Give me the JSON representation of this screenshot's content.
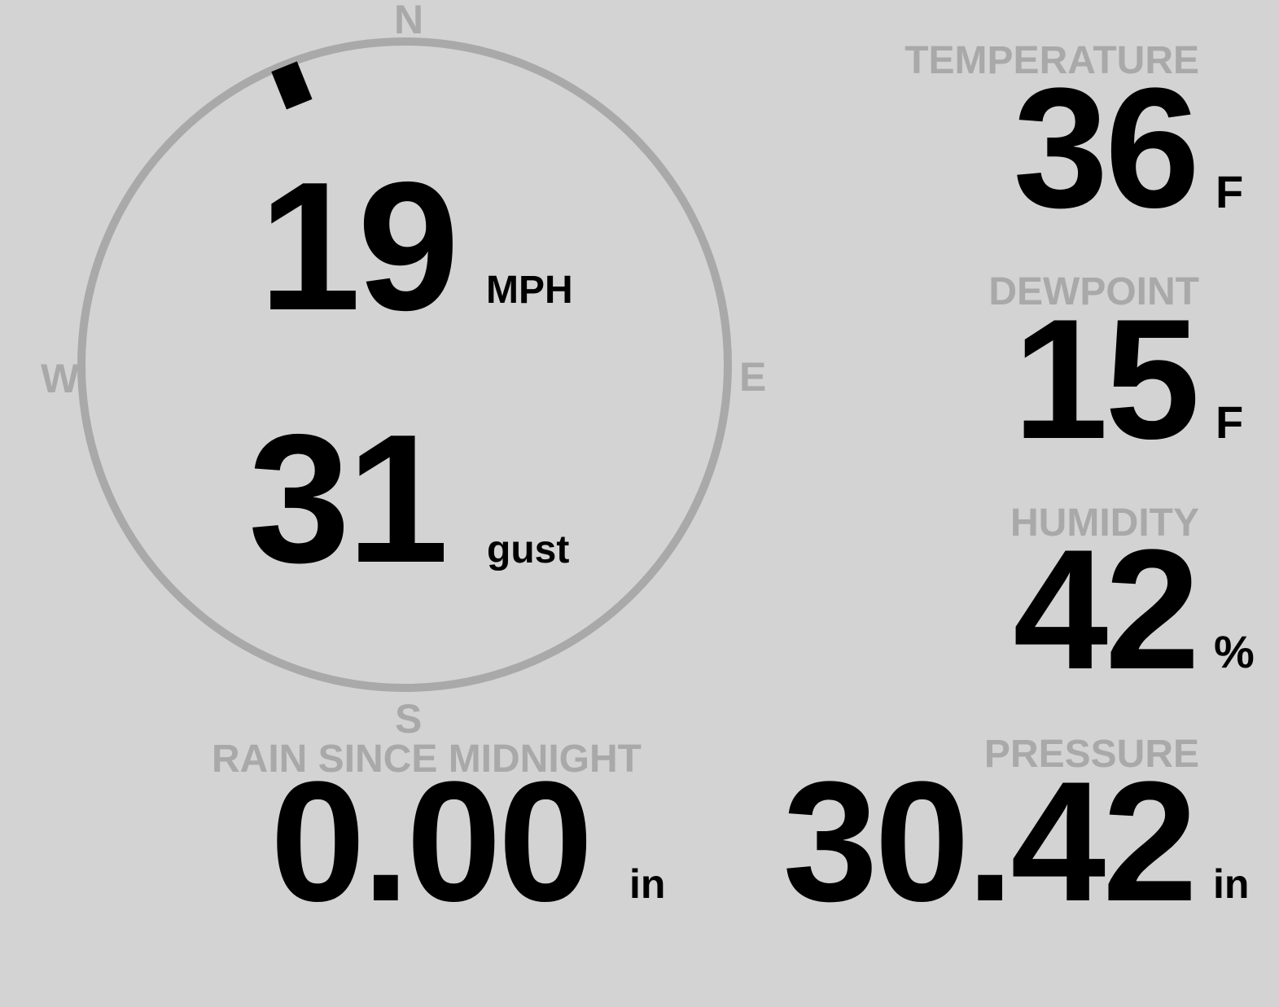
{
  "colors": {
    "background": "#d3d3d3",
    "muted": "#a9a9a9",
    "value": "#000000"
  },
  "compass": {
    "north": "N",
    "south": "S",
    "east": "E",
    "west": "W",
    "wind_direction_deg": 338
  },
  "wind": {
    "speed": "19",
    "speed_unit": "MPH",
    "gust": "31",
    "gust_label": "gust"
  },
  "temperature": {
    "label": "TEMPERATURE",
    "value": "36",
    "unit": "F"
  },
  "dewpoint": {
    "label": "DEWPOINT",
    "value": "15",
    "unit": "F"
  },
  "humidity": {
    "label": "HUMIDITY",
    "value": "42",
    "unit": "%"
  },
  "rain": {
    "label": "RAIN SINCE MIDNIGHT",
    "value": "0.00",
    "unit": "in"
  },
  "pressure": {
    "label": "PRESSURE",
    "value": "30.42",
    "unit": "in"
  }
}
